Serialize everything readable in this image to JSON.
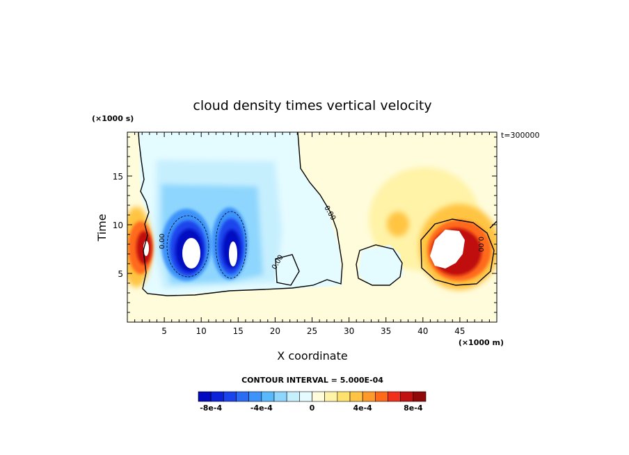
{
  "chart_data": {
    "type": "heatmap",
    "title": "cloud density times vertical velocity",
    "xlabel": "X coordinate",
    "ylabel": "Time",
    "x_unit_label": "(×1000 m)",
    "y_unit_label": "(×1000 s)",
    "time_stamp": "t=300000",
    "xlim": [
      0,
      50
    ],
    "ylim": [
      0,
      19.5
    ],
    "x_ticks": [
      5,
      10,
      15,
      20,
      25,
      30,
      35,
      40,
      45
    ],
    "y_ticks": [
      5,
      10,
      15
    ],
    "contour_interval_label": "CONTOUR INTERVAL = 5.000E-04",
    "contour_interval": 0.0005,
    "colorbar": {
      "levels": 16,
      "colors": [
        "#0008c0",
        "#0b22d8",
        "#1a45ec",
        "#2a6cf4",
        "#3d93fa",
        "#5ab8fd",
        "#8ed6fd",
        "#c6effe",
        "#e4fbff",
        "#fffcdc",
        "#fff3a8",
        "#ffe16d",
        "#ffc443",
        "#ff9a2a",
        "#ff6a1a",
        "#f0301a",
        "#c01010",
        "#900808"
      ],
      "tick_labels": [
        "-8e-4",
        "-4e-4",
        "0",
        "4e-4",
        "8e-4"
      ],
      "tick_values": [
        -0.0008,
        -0.0004,
        0,
        0.0004,
        0.0008
      ]
    },
    "contour_labels": [
      "0.00",
      "0.00",
      "0.00",
      "0.00"
    ],
    "features": [
      {
        "kind": "negative-max",
        "x": 8,
        "y": 7.5,
        "value": -0.0009
      },
      {
        "kind": "negative-max",
        "x": 14,
        "y": 7.5,
        "value": -0.0009
      },
      {
        "kind": "positive-max",
        "x": 2.5,
        "y": 7.5,
        "value": 0.0008
      },
      {
        "kind": "positive-max",
        "x": 44,
        "y": 7.5,
        "value": 0.0009
      },
      {
        "kind": "positive-weak",
        "x": 37,
        "y": 10.5,
        "value": 0.0003
      }
    ]
  }
}
